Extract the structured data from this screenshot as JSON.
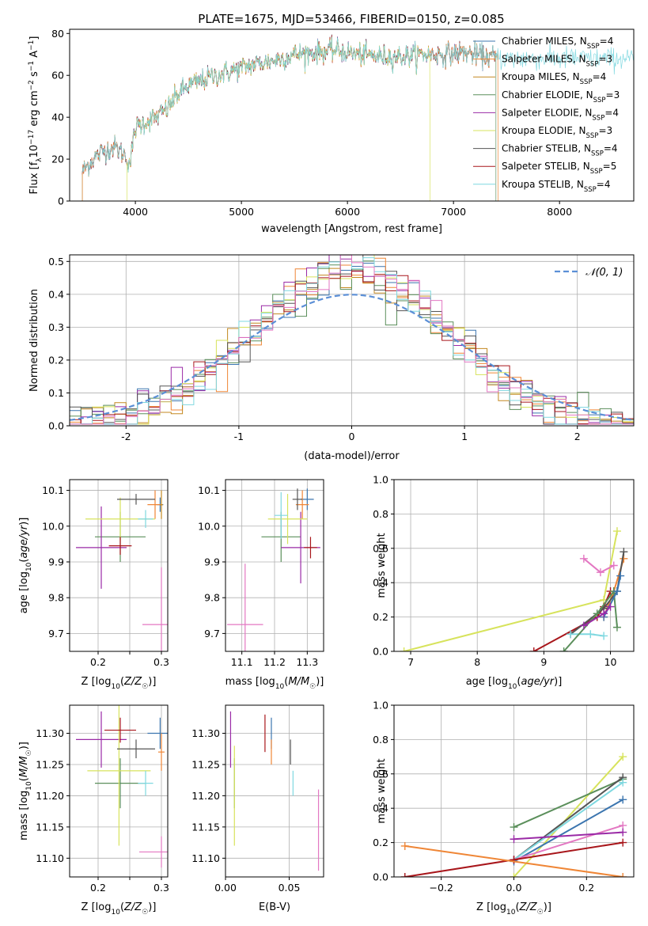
{
  "figure_title": "PLATE=1675, MJD=53466, FIBERID=0150, z=0.085",
  "colors": {
    "chabrier_miles": "#3b75af",
    "salpeter_miles": "#ef8636",
    "kroupa_miles": "#c38820",
    "chabrier_elodie": "#5b8f5b",
    "salpeter_elodie": "#9a2aa6",
    "kroupa_elodie": "#d7e35c",
    "chabrier_stelib": "#555555",
    "salpeter_stelib": "#a8161b",
    "kroupa_stelib": "#7fd8e0",
    "pink": "#e377c2",
    "normal": "#5b8fd6"
  },
  "legend": {
    "entries": [
      {
        "name": "Chabrier MILES",
        "n": "4",
        "key": "chabrier_miles"
      },
      {
        "name": "Salpeter MILES",
        "n": "3",
        "key": "salpeter_miles"
      },
      {
        "name": "Kroupa MILES",
        "n": "4",
        "key": "kroupa_miles"
      },
      {
        "name": "Chabrier ELODIE",
        "n": "3",
        "key": "chabrier_elodie"
      },
      {
        "name": "Salpeter ELODIE",
        "n": "4",
        "key": "salpeter_elodie"
      },
      {
        "name": "Kroupa ELODIE",
        "n": "3",
        "key": "kroupa_elodie"
      },
      {
        "name": "Chabrier STELIB",
        "n": "4",
        "key": "chabrier_stelib"
      },
      {
        "name": "Salpeter STELIB",
        "n": "5",
        "key": "salpeter_stelib"
      },
      {
        "name": "Kroupa STELIB",
        "n": "4",
        "key": "kroupa_stelib"
      }
    ],
    "normal_label": "𝒩(0, 1)"
  },
  "chart_data": [
    {
      "id": "spectrum",
      "type": "line",
      "xlabel": "wavelength [Angstrom, rest frame]",
      "ylabel": "Flux [f_λ 10^-17 erg cm^-2 s^-1 A^-1]",
      "xlim": [
        3380,
        8700
      ],
      "ylim": [
        0,
        82
      ],
      "xticks": [
        4000,
        5000,
        6000,
        7000,
        8000
      ],
      "yticks": [
        0,
        20,
        40,
        60,
        80
      ],
      "grid": false,
      "legend_position": "top-right",
      "continuum": {
        "x": [
          3500,
          3600,
          3700,
          3800,
          3900,
          3950,
          4000,
          4100,
          4200,
          4300,
          4400,
          4500,
          4700,
          4900,
          5100,
          5300,
          5500,
          5700,
          5900,
          6100,
          6300,
          6500,
          6700,
          6900,
          7100,
          7300,
          7500
        ],
        "y": [
          14,
          20,
          24,
          26,
          22,
          18,
          35,
          38,
          40,
          44,
          51,
          55,
          59,
          62,
          65,
          67,
          70,
          71,
          72,
          70,
          69,
          69,
          70,
          70,
          71,
          69,
          68
        ]
      },
      "cutoffs": [
        {
          "key": "kroupa_elodie",
          "start": 3920,
          "end": 6780
        },
        {
          "key": "salpeter_miles",
          "start": 3500,
          "end": 7420
        },
        {
          "key": "chabrier_elodie",
          "start": 3500,
          "end": 7400
        }
      ]
    },
    {
      "id": "residuals",
      "type": "histogram",
      "xlabel": "(data-model)/error",
      "ylabel": "Normed distribution",
      "xlim": [
        -2.5,
        2.5
      ],
      "ylim": [
        0,
        0.52
      ],
      "xticks": [
        -2,
        -1,
        0,
        1,
        2
      ],
      "yticks": [
        0.0,
        0.1,
        0.2,
        0.3,
        0.4,
        0.5
      ],
      "grid": true,
      "bin_width": 0.1,
      "legend_position": "top-right"
    },
    {
      "id": "age_vs_z",
      "type": "errorbar",
      "xlabel": "Z [log10(Z/Z☉)]",
      "ylabel": "age [log10(age/yr)]",
      "xlim": [
        0.155,
        0.31
      ],
      "ylim": [
        9.65,
        10.13
      ],
      "xticks": [
        0.2,
        0.25,
        0.3
      ],
      "xticklabels": [
        "0.2",
        "",
        "0.3"
      ],
      "yticks": [
        9.7,
        9.8,
        9.9,
        10.0,
        10.1
      ],
      "grid": true,
      "points": [
        {
          "key": "chabrier_miles",
          "x": 0.298,
          "y": 10.06,
          "xe": 0.005,
          "ye": 0.02
        },
        {
          "key": "salpeter_miles",
          "x": 0.29,
          "y": 10.06,
          "xe": 0.012,
          "ye": 0.04
        },
        {
          "key": "kroupa_miles",
          "x": 0.3,
          "y": 10.06,
          "xe": 0.002,
          "ye": 0.04
        },
        {
          "key": "chabrier_elodie",
          "x": 0.235,
          "y": 9.97,
          "xe": 0.04,
          "ye": 0.07
        },
        {
          "key": "salpeter_elodie",
          "x": 0.205,
          "y": 9.94,
          "xe": 0.04,
          "ye": 0.115
        },
        {
          "key": "kroupa_elodie",
          "x": 0.235,
          "y": 10.02,
          "xe": 0.055,
          "ye": 0.06
        },
        {
          "key": "chabrier_stelib",
          "x": 0.26,
          "y": 10.075,
          "xe": 0.03,
          "ye": 0.015
        },
        {
          "key": "salpeter_stelib",
          "x": 0.235,
          "y": 9.945,
          "xe": 0.018,
          "ye": 0.025
        },
        {
          "key": "kroupa_stelib",
          "x": 0.275,
          "y": 10.02,
          "xe": 0.012,
          "ye": 0.025
        },
        {
          "key": "pink",
          "x": 0.3,
          "y": 9.725,
          "xe": 0.03,
          "ye": 0.16
        }
      ]
    },
    {
      "id": "age_vs_mass",
      "type": "errorbar",
      "xlabel": "mass [log10(M/M☉)]",
      "ylabel": "",
      "xlim": [
        11.05,
        11.35
      ],
      "ylim": [
        9.65,
        10.13
      ],
      "xticks": [
        11.1,
        11.2,
        11.3
      ],
      "yticks": [
        9.7,
        9.8,
        9.9,
        10.0,
        10.1
      ],
      "grid": true,
      "points": [
        {
          "key": "chabrier_miles",
          "x": 11.3,
          "y": 10.075,
          "xe": 0.02,
          "ye": 0.03
        },
        {
          "key": "salpeter_miles",
          "x": 11.285,
          "y": 10.06,
          "xe": 0.02,
          "ye": 0.04
        },
        {
          "key": "chabrier_elodie",
          "x": 11.22,
          "y": 9.97,
          "xe": 0.06,
          "ye": 0.07
        },
        {
          "key": "salpeter_elodie",
          "x": 11.28,
          "y": 9.94,
          "xe": 0.06,
          "ye": 0.1
        },
        {
          "key": "kroupa_elodie",
          "x": 11.24,
          "y": 10.02,
          "xe": 0.06,
          "ye": 0.07
        },
        {
          "key": "chabrier_stelib",
          "x": 11.27,
          "y": 10.075,
          "xe": 0.015,
          "ye": 0.03
        },
        {
          "key": "salpeter_stelib",
          "x": 11.31,
          "y": 9.94,
          "xe": 0.02,
          "ye": 0.03
        },
        {
          "key": "kroupa_stelib",
          "x": 11.22,
          "y": 10.03,
          "xe": 0.02,
          "ye": 0.065
        },
        {
          "key": "pink",
          "x": 11.11,
          "y": 9.725,
          "xe": 0.055,
          "ye": 0.17
        }
      ]
    },
    {
      "id": "weight_vs_age",
      "type": "line",
      "xlabel": "age [log10(age/yr)]",
      "ylabel": "mass weight",
      "xlim": [
        6.75,
        10.35
      ],
      "ylim": [
        0,
        1.0
      ],
      "xticks": [
        7,
        8,
        9,
        10
      ],
      "yticks": [
        0.0,
        0.2,
        0.4,
        0.6,
        0.8,
        1.0
      ],
      "grid": true,
      "series": [
        {
          "key": "kroupa_elodie",
          "x": [
            6.9,
            9.9,
            10.1
          ],
          "y": [
            0.0,
            0.3,
            0.7
          ]
        },
        {
          "key": "salpeter_stelib",
          "x": [
            8.85,
            9.8,
            9.9,
            10.0
          ],
          "y": [
            0.0,
            0.2,
            0.26,
            0.35
          ]
        },
        {
          "key": "pink",
          "x": [
            9.6,
            9.85,
            10.05
          ],
          "y": [
            0.54,
            0.46,
            0.5
          ]
        },
        {
          "key": "salpeter_miles",
          "x": [
            9.9,
            10.05,
            10.2
          ],
          "y": [
            0.2,
            0.35,
            0.54
          ]
        },
        {
          "key": "chabrier_stelib",
          "x": [
            9.4,
            9.9,
            10.1,
            10.2
          ],
          "y": [
            0.1,
            0.25,
            0.35,
            0.58
          ]
        },
        {
          "key": "kroupa_stelib",
          "x": [
            9.4,
            9.7,
            9.9
          ],
          "y": [
            0.1,
            0.1,
            0.09
          ]
        },
        {
          "key": "chabrier_elodie",
          "x": [
            9.3,
            9.8,
            10.05,
            10.1
          ],
          "y": [
            0.0,
            0.22,
            0.35,
            0.14
          ]
        },
        {
          "key": "chabrier_miles",
          "x": [
            9.9,
            10.1,
            10.15
          ],
          "y": [
            0.2,
            0.35,
            0.44
          ]
        },
        {
          "key": "salpeter_elodie",
          "x": [
            9.6,
            9.9,
            10.0
          ],
          "y": [
            0.15,
            0.22,
            0.26
          ]
        }
      ]
    },
    {
      "id": "mass_vs_z",
      "type": "errorbar",
      "xlabel": "Z [log10(Z/Z☉)]",
      "ylabel": "mass [log10(M/M☉)]",
      "xlim": [
        0.155,
        0.31
      ],
      "ylim": [
        11.07,
        11.345
      ],
      "xticks": [
        0.2,
        0.25,
        0.3
      ],
      "xticklabels": [
        "0.2",
        "",
        "0.3"
      ],
      "yticks": [
        11.1,
        11.15,
        11.2,
        11.25,
        11.3
      ],
      "grid": true,
      "points": [
        {
          "key": "chabrier_miles",
          "x": 0.298,
          "y": 11.3,
          "xe": 0.02,
          "ye": 0.025
        },
        {
          "key": "salpeter_miles",
          "x": 0.3,
          "y": 11.27,
          "xe": 0.005,
          "ye": 0.03
        },
        {
          "key": "chabrier_elodie",
          "x": 0.235,
          "y": 11.22,
          "xe": 0.04,
          "ye": 0.04
        },
        {
          "key": "salpeter_elodie",
          "x": 0.205,
          "y": 11.29,
          "xe": 0.04,
          "ye": 0.045
        },
        {
          "key": "kroupa_elodie",
          "x": 0.233,
          "y": 11.24,
          "xe": 0.05,
          "ye": 0.12
        },
        {
          "key": "chabrier_stelib",
          "x": 0.26,
          "y": 11.275,
          "xe": 0.03,
          "ye": 0.015
        },
        {
          "key": "salpeter_stelib",
          "x": 0.235,
          "y": 11.305,
          "xe": 0.025,
          "ye": 0.02
        },
        {
          "key": "kroupa_stelib",
          "x": 0.275,
          "y": 11.22,
          "xe": 0.012,
          "ye": 0.02
        },
        {
          "key": "pink",
          "x": 0.3,
          "y": 11.11,
          "xe": 0.035,
          "ye": 0.025
        }
      ]
    },
    {
      "id": "mass_vs_ebv",
      "type": "errorbar",
      "xlabel": "E(B-V)",
      "ylabel": "",
      "xlim": [
        0.0,
        0.077
      ],
      "ylim": [
        11.07,
        11.345
      ],
      "xticks": [
        0.0,
        0.05
      ],
      "xticklabels": [
        "0.00",
        "0.05"
      ],
      "yticks": [
        11.1,
        11.15,
        11.2,
        11.25,
        11.3
      ],
      "grid": true,
      "points": [
        {
          "key": "salpeter_elodie",
          "x": 0.004,
          "y": 11.29,
          "xe": 0,
          "ye": 0.045
        },
        {
          "key": "chabrier_elodie",
          "x": 0.007,
          "y": 11.22,
          "xe": 0,
          "ye": 0.04
        },
        {
          "key": "kroupa_elodie",
          "x": 0.007,
          "y": 11.2,
          "xe": 0,
          "ye": 0.08
        },
        {
          "key": "salpeter_stelib",
          "x": 0.031,
          "y": 11.3,
          "xe": 0,
          "ye": 0.03
        },
        {
          "key": "chabrier_miles",
          "x": 0.036,
          "y": 11.3,
          "xe": 0,
          "ye": 0.025
        },
        {
          "key": "salpeter_miles",
          "x": 0.036,
          "y": 11.27,
          "xe": 0,
          "ye": 0.02
        },
        {
          "key": "chabrier_stelib",
          "x": 0.051,
          "y": 11.27,
          "xe": 0,
          "ye": 0.02
        },
        {
          "key": "kroupa_stelib",
          "x": 0.053,
          "y": 11.22,
          "xe": 0,
          "ye": 0.02
        },
        {
          "key": "pink",
          "x": 0.073,
          "y": 11.145,
          "xe": 0,
          "ye": 0.065
        }
      ]
    },
    {
      "id": "weight_vs_z",
      "type": "line",
      "xlabel": "Z [log10(Z/Z☉)]",
      "ylabel": "mass weight",
      "xlim": [
        -0.33,
        0.33
      ],
      "ylim": [
        0,
        1.0
      ],
      "xticks": [
        -0.2,
        0.0,
        0.2
      ],
      "xticklabels": [
        "−0.2",
        "0.0",
        "0.2"
      ],
      "yticks": [
        0.0,
        0.2,
        0.4,
        0.6,
        0.8,
        1.0
      ],
      "grid": true,
      "series": [
        {
          "key": "kroupa_elodie",
          "x": [
            0.0,
            0.3
          ],
          "y": [
            0.0,
            0.7
          ]
        },
        {
          "key": "chabrier_elodie",
          "x": [
            0.0,
            0.3
          ],
          "y": [
            0.29,
            0.57
          ]
        },
        {
          "key": "chabrier_stelib",
          "x": [
            0.0,
            0.3
          ],
          "y": [
            0.1,
            0.58
          ]
        },
        {
          "key": "kroupa_stelib",
          "x": [
            0.0,
            0.3
          ],
          "y": [
            0.1,
            0.55
          ]
        },
        {
          "key": "chabrier_miles",
          "x": [
            0.0,
            0.3
          ],
          "y": [
            0.09,
            0.45
          ]
        },
        {
          "key": "pink",
          "x": [
            0.0,
            0.3
          ],
          "y": [
            0.1,
            0.3
          ]
        },
        {
          "key": "salpeter_elodie",
          "x": [
            0.0,
            0.3
          ],
          "y": [
            0.22,
            0.26
          ]
        },
        {
          "key": "salpeter_stelib",
          "x": [
            -0.3,
            0.0,
            0.3
          ],
          "y": [
            0.0,
            0.1,
            0.2
          ]
        },
        {
          "key": "salpeter_miles",
          "x": [
            -0.3,
            0.3
          ],
          "y": [
            0.18,
            0.0
          ]
        }
      ]
    }
  ]
}
